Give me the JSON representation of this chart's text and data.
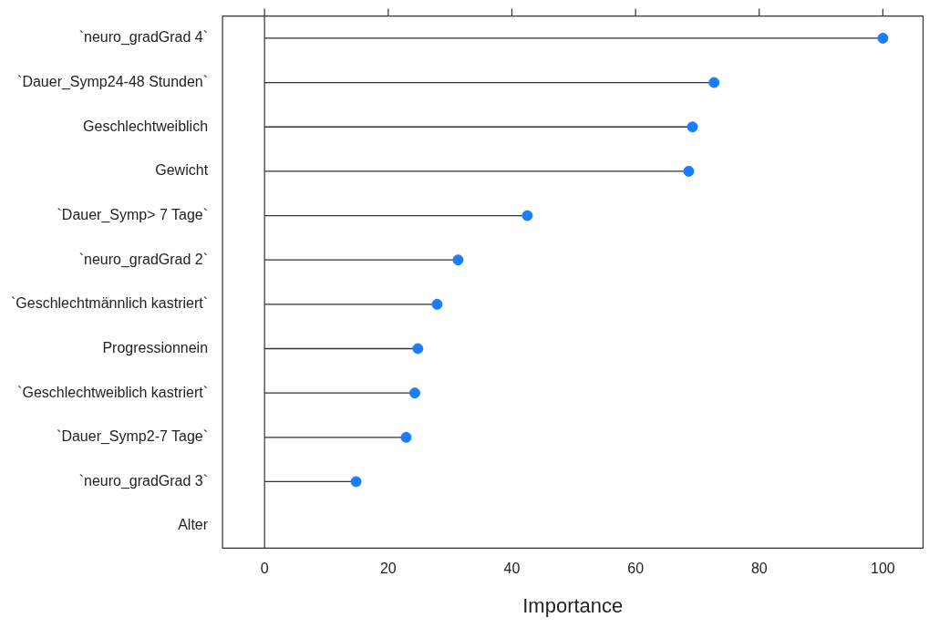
{
  "chart_data": {
    "type": "lollipop",
    "orientation": "horizontal",
    "xlabel": "Importance",
    "categories": [
      "`neuro_gradGrad 4`",
      "`Dauer_Symp24-48 Stunden`",
      "Geschlechtweiblich",
      "Gewicht",
      "`Dauer_Symp> 7 Tage`",
      "`neuro_gradGrad 2`",
      "`Geschlechtmännlich kastriert`",
      "Progressionnein",
      "`Geschlechtweiblich kastriert`",
      "`Dauer_Symp2-7 Tage`",
      "`neuro_gradGrad 3`",
      "Alter"
    ],
    "series": [
      {
        "color": "#1a7cff",
        "values": [
          100,
          72.7,
          69.2,
          68.6,
          42.5,
          31.3,
          27.9,
          24.8,
          24.3,
          22.9,
          14.8,
          null
        ]
      }
    ],
    "xlim": [
      -6.8,
      106.5
    ],
    "xticks": [
      0,
      20,
      40,
      60,
      80,
      100
    ],
    "ref_lines": [
      {
        "axis": "x",
        "value": 0,
        "color": "#333333"
      }
    ],
    "grid": false,
    "legend": false,
    "marker": "circle"
  }
}
